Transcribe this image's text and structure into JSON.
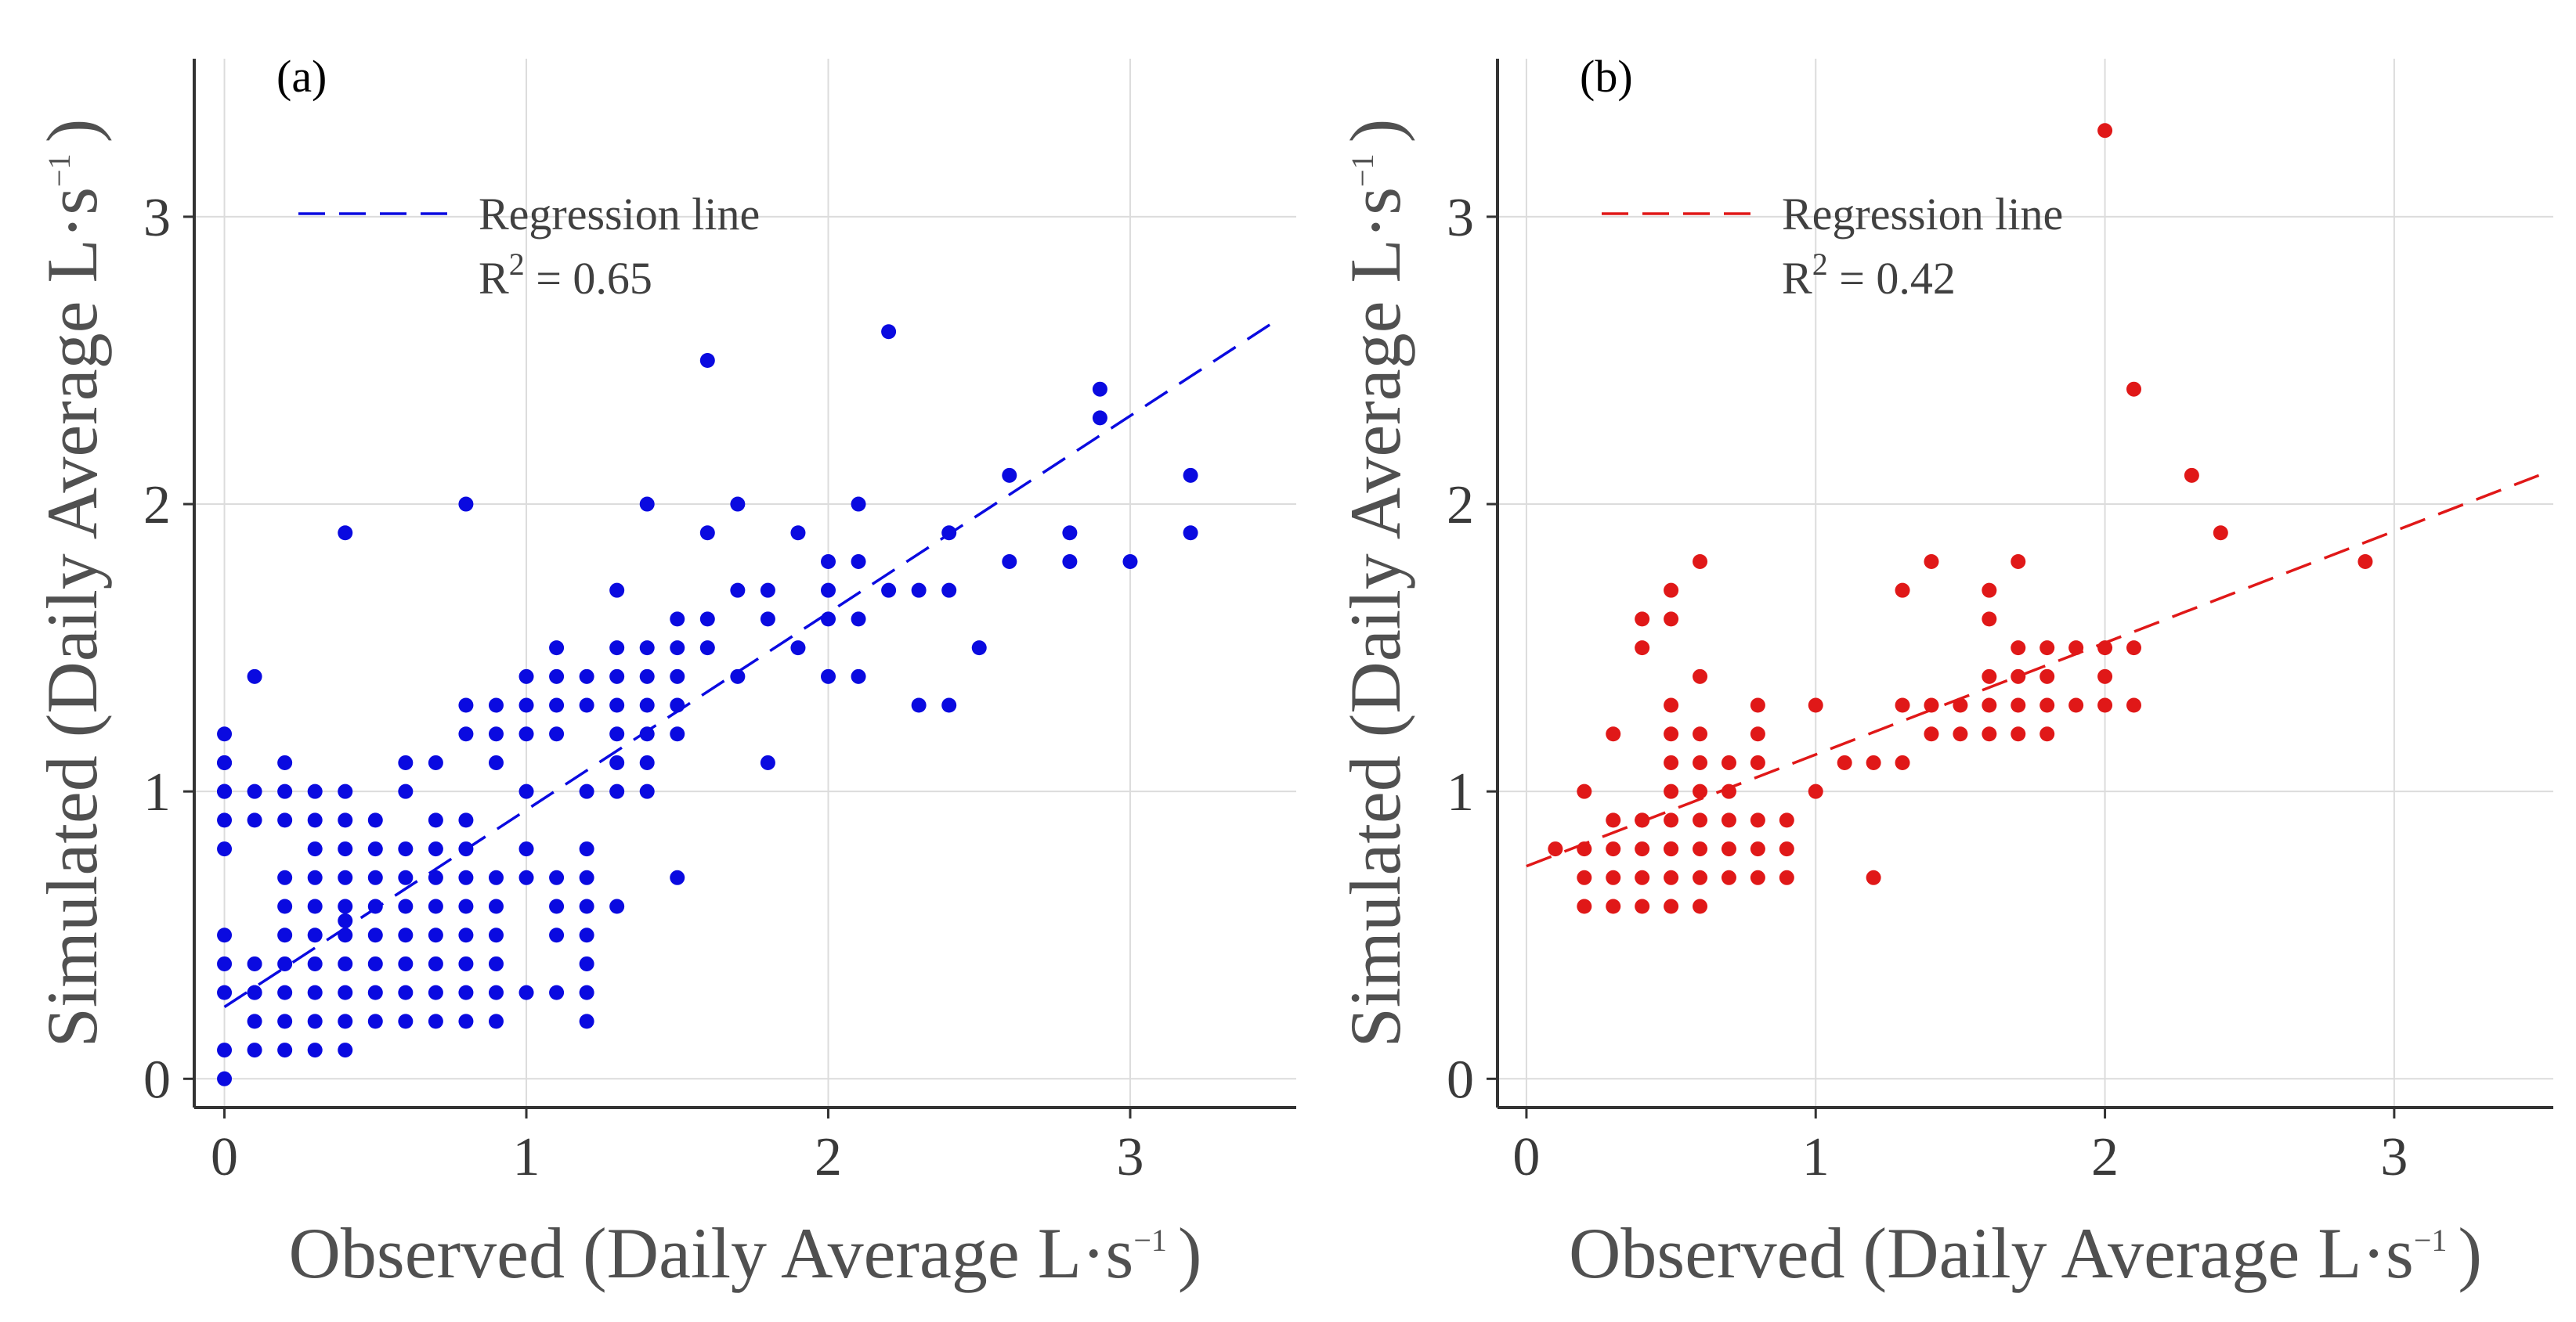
{
  "chart_data": [
    {
      "type": "scatter",
      "panel_label": "(a)",
      "color": "#0a0ae0",
      "xlabel_main": "Observed (Daily Average L·s",
      "xlabel_sup": "−1",
      "xlabel_end": ")",
      "ylabel_main": "Simulated (Daily Average L·s",
      "ylabel_sup": "−1",
      "ylabel_end": ")",
      "xlim": [
        -0.1,
        3.55
      ],
      "ylim": [
        -0.1,
        3.55
      ],
      "xticks": [
        0,
        1,
        2,
        3
      ],
      "yticks": [
        0,
        1,
        2,
        3
      ],
      "grid": true,
      "legend": {
        "label": "Regression line",
        "r2_prefix": "R",
        "r2_sup": "2",
        "r2_text": " = 0.65",
        "position": "top-left"
      },
      "regression": {
        "x": [
          0.0,
          3.5
        ],
        "y": [
          0.25,
          2.65
        ]
      },
      "points": {
        "x": [
          0,
          0,
          0,
          0,
          0,
          0,
          0,
          0,
          0,
          0,
          0,
          0,
          0.1,
          0.1,
          0.1,
          0.1,
          0.1,
          0.1,
          0.1,
          0.1,
          0.2,
          0.2,
          0.2,
          0.2,
          0.2,
          0.2,
          0.2,
          0.2,
          0.2,
          0.2,
          0.3,
          0.3,
          0.3,
          0.3,
          0.3,
          0.3,
          0.3,
          0.3,
          0.3,
          0.3,
          0.4,
          0.4,
          0.4,
          0.4,
          0.4,
          0.4,
          0.4,
          0.4,
          0.4,
          0.4,
          0.4,
          0.4,
          0.5,
          0.5,
          0.5,
          0.5,
          0.5,
          0.5,
          0.5,
          0.5,
          0.6,
          0.6,
          0.6,
          0.6,
          0.6,
          0.6,
          0.6,
          0.6,
          0.6,
          0.7,
          0.7,
          0.7,
          0.7,
          0.7,
          0.7,
          0.7,
          0.7,
          0.7,
          0.8,
          0.8,
          0.8,
          0.8,
          0.8,
          0.8,
          0.8,
          0.8,
          0.8,
          0.8,
          0.8,
          0.9,
          0.9,
          0.9,
          0.9,
          0.9,
          0.9,
          0.9,
          0.9,
          0.9,
          1.0,
          1.0,
          1.0,
          1.0,
          1.0,
          1.0,
          1.0,
          1.1,
          1.1,
          1.1,
          1.1,
          1.1,
          1.1,
          1.1,
          1.1,
          1.2,
          1.2,
          1.2,
          1.2,
          1.2,
          1.2,
          1.2,
          1.2,
          1.2,
          1.2,
          1.3,
          1.3,
          1.3,
          1.3,
          1.3,
          1.3,
          1.3,
          1.3,
          1.4,
          1.4,
          1.4,
          1.4,
          1.4,
          1.4,
          1.4,
          1.5,
          1.5,
          1.5,
          1.5,
          1.5,
          1.5,
          1.6,
          1.6,
          1.6,
          1.6,
          1.7,
          1.7,
          1.7,
          1.8,
          1.8,
          1.8,
          1.9,
          1.9,
          2.0,
          2.0,
          2.0,
          2.0,
          2.1,
          2.1,
          2.1,
          2.1,
          2.2,
          2.2,
          2.3,
          2.3,
          2.4,
          2.4,
          2.4,
          2.5,
          2.6,
          2.6,
          2.8,
          2.8,
          2.9,
          2.9,
          3.0,
          3.2,
          3.2
        ],
        "y": [
          0,
          0.1,
          0.3,
          0.4,
          0.5,
          0.8,
          0.9,
          1.0,
          1.1,
          1.2,
          1.0,
          1.1,
          0.1,
          0.2,
          0.3,
          0.4,
          0.9,
          1.0,
          1.4,
          0.3,
          0.2,
          0.3,
          0.4,
          0.6,
          0.9,
          1.0,
          1.1,
          0.1,
          0.5,
          0.7,
          0.1,
          0.2,
          0.3,
          0.4,
          0.5,
          0.6,
          0.7,
          0.8,
          0.9,
          1.0,
          0.1,
          0.2,
          0.3,
          0.4,
          0.5,
          0.6,
          0.7,
          0.8,
          0.9,
          1.0,
          1.9,
          0.55,
          0.2,
          0.3,
          0.4,
          0.5,
          0.6,
          0.7,
          0.8,
          0.9,
          0.2,
          0.3,
          0.4,
          0.5,
          0.6,
          0.7,
          0.8,
          1.0,
          1.1,
          0.2,
          0.3,
          0.4,
          0.5,
          0.6,
          0.7,
          0.8,
          0.9,
          1.1,
          0.2,
          0.3,
          0.4,
          0.5,
          0.6,
          0.7,
          0.8,
          1.2,
          1.3,
          2.0,
          0.9,
          0.2,
          0.3,
          0.4,
          0.5,
          0.6,
          0.7,
          1.2,
          1.3,
          1.1,
          0.3,
          0.7,
          0.8,
          1.0,
          1.2,
          1.3,
          1.4,
          0.3,
          0.5,
          1.2,
          1.3,
          1.4,
          1.5,
          0.6,
          0.7,
          0.2,
          0.3,
          0.4,
          0.5,
          0.6,
          0.7,
          0.8,
          1.0,
          1.3,
          1.4,
          0.6,
          1.0,
          1.1,
          1.2,
          1.3,
          1.4,
          1.5,
          1.7,
          1.0,
          1.1,
          1.2,
          1.3,
          1.4,
          1.5,
          2.0,
          0.7,
          1.2,
          1.3,
          1.4,
          1.5,
          1.6,
          1.5,
          1.6,
          1.9,
          2.5,
          1.4,
          1.7,
          2.0,
          1.1,
          1.6,
          1.7,
          1.5,
          1.9,
          1.4,
          1.6,
          1.7,
          1.8,
          1.4,
          1.6,
          1.8,
          2.0,
          1.7,
          2.6,
          1.3,
          1.7,
          1.3,
          1.7,
          1.9,
          1.5,
          1.8,
          2.1,
          1.8,
          1.9,
          2.3,
          2.4,
          1.8,
          1.9,
          2.1
        ]
      }
    },
    {
      "type": "scatter",
      "panel_label": "(b)",
      "color": "#e01818",
      "xlabel_main": "Observed (Daily Average L·s",
      "xlabel_sup": "−1",
      "xlabel_end": ")",
      "ylabel_main": "Simulated (Daily Average L·s",
      "ylabel_sup": "−1",
      "ylabel_end": ")",
      "xlim": [
        -0.1,
        3.55
      ],
      "ylim": [
        -0.1,
        3.55
      ],
      "xticks": [
        0,
        1,
        2,
        3
      ],
      "yticks": [
        0,
        1,
        2,
        3
      ],
      "grid": true,
      "legend": {
        "label": "Regression line",
        "r2_prefix": "R",
        "r2_sup": "2",
        "r2_text": " = 0.42",
        "position": "top-left"
      },
      "regression": {
        "x": [
          0.0,
          3.5
        ],
        "y": [
          0.74,
          2.1
        ]
      },
      "points": {
        "x": [
          0.1,
          0.2,
          0.2,
          0.2,
          0.2,
          0.3,
          0.3,
          0.3,
          0.3,
          0.3,
          0.4,
          0.4,
          0.4,
          0.4,
          0.4,
          0.4,
          0.4,
          0.5,
          0.5,
          0.5,
          0.5,
          0.5,
          0.5,
          0.5,
          0.5,
          0.5,
          0.5,
          0.5,
          0.6,
          0.6,
          0.6,
          0.6,
          0.6,
          0.6,
          0.6,
          0.6,
          0.6,
          0.7,
          0.7,
          0.7,
          0.7,
          0.7,
          0.8,
          0.8,
          0.8,
          0.8,
          0.8,
          0.8,
          0.9,
          0.9,
          0.9,
          1.0,
          1.0,
          1.1,
          1.2,
          1.2,
          1.3,
          1.3,
          1.3,
          1.4,
          1.4,
          1.4,
          1.5,
          1.5,
          1.6,
          1.6,
          1.6,
          1.6,
          1.6,
          1.7,
          1.7,
          1.7,
          1.7,
          1.7,
          1.8,
          1.8,
          1.8,
          1.8,
          1.9,
          1.9,
          2.0,
          2.0,
          2.0,
          2.0,
          2.1,
          2.1,
          2.1,
          2.3,
          2.4,
          2.9
        ],
        "y": [
          0.8,
          0.6,
          0.7,
          0.8,
          1.0,
          0.6,
          0.7,
          0.8,
          0.9,
          1.2,
          0.6,
          0.7,
          0.8,
          0.9,
          1.5,
          1.6,
          0.9,
          0.6,
          0.7,
          0.8,
          0.9,
          1.0,
          1.1,
          1.2,
          1.3,
          1.6,
          1.7,
          0.8,
          0.6,
          0.7,
          0.8,
          0.9,
          1.0,
          1.1,
          1.2,
          1.4,
          1.8,
          0.7,
          0.8,
          0.9,
          1.0,
          1.1,
          0.7,
          0.8,
          0.9,
          1.1,
          1.2,
          1.3,
          0.7,
          0.8,
          0.9,
          1.0,
          1.3,
          1.1,
          0.7,
          1.1,
          1.1,
          1.3,
          1.7,
          1.2,
          1.3,
          1.8,
          1.2,
          1.3,
          1.2,
          1.3,
          1.4,
          1.6,
          1.7,
          1.2,
          1.3,
          1.4,
          1.5,
          1.8,
          1.2,
          1.3,
          1.4,
          1.5,
          1.3,
          1.5,
          1.3,
          1.4,
          1.5,
          3.3,
          1.3,
          1.5,
          2.4,
          2.1,
          1.9,
          1.8
        ]
      }
    }
  ]
}
